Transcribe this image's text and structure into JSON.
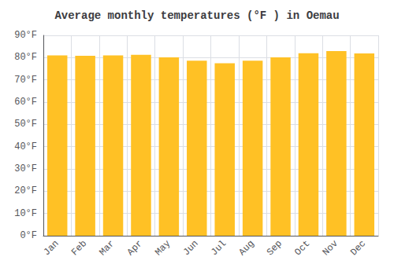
{
  "chart_data": {
    "type": "bar",
    "title": "Average monthly temperatures (°F ) in Oemau",
    "categories": [
      "Jan",
      "Feb",
      "Mar",
      "Apr",
      "May",
      "Jun",
      "Jul",
      "Aug",
      "Sep",
      "Oct",
      "Nov",
      "Dec"
    ],
    "values": [
      81.0,
      80.8,
      81.0,
      81.3,
      80.1,
      78.6,
      77.5,
      78.6,
      80.1,
      82.0,
      82.9,
      81.9
    ],
    "color": "#FFC125",
    "ylim": [
      0,
      90
    ],
    "yticks": [
      {
        "value": 0,
        "label": "0°F"
      },
      {
        "value": 10,
        "label": "10°F"
      },
      {
        "value": 20,
        "label": "20°F"
      },
      {
        "value": 30,
        "label": "30°F"
      },
      {
        "value": 40,
        "label": "40°F"
      },
      {
        "value": 50,
        "label": "50°F"
      },
      {
        "value": 60,
        "label": "60°F"
      },
      {
        "value": 70,
        "label": "70°F"
      },
      {
        "value": 80,
        "label": "80°F"
      },
      {
        "value": 90,
        "label": "90°F"
      }
    ],
    "grid": true
  }
}
